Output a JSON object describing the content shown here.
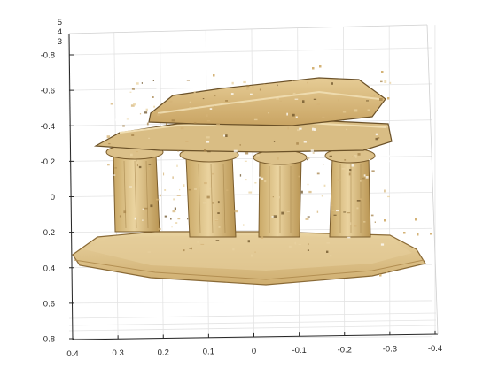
{
  "chart_data": {
    "type": "scatter",
    "subtype": "3d-point-cloud",
    "title": "",
    "xlabel": "",
    "ylabel": "",
    "zlabel": "",
    "view": "3d-rotated",
    "grid": true,
    "legend": "none",
    "x_ticks": [
      0.4,
      0.3,
      0.2,
      0.1,
      0,
      -0.1,
      -0.2,
      -0.3,
      -0.4
    ],
    "x_tick_labels": [
      "0.4",
      "0.3",
      "0.2",
      "0.1",
      "0",
      "-0.1",
      "-0.2",
      "-0.3",
      "-0.4"
    ],
    "xlim": [
      0.4,
      -0.4
    ],
    "y_ticks": [
      -0.8,
      -0.6,
      -0.4,
      -0.2,
      0,
      0.2,
      0.4,
      0.6,
      0.8
    ],
    "y_tick_labels": [
      "-0.8",
      "-0.6",
      "-0.4",
      "-0.2",
      "0",
      "0.2",
      "0.4",
      "0.6",
      "0.8"
    ],
    "ylim": [
      -0.8,
      0.8
    ],
    "z_ticks": [
      5,
      4,
      3
    ],
    "z_tick_labels": [
      "5",
      "4",
      "3"
    ],
    "subject": "point cloud reconstruction of a Greek temple ruin with columns",
    "colors": {
      "stone_light": "#e8d2a0",
      "stone_mid": "#d4b377",
      "stone_dark": "#a5834a",
      "shadow": "#6b5128",
      "grid": "#e3e3e3",
      "axis": "#262626"
    }
  }
}
